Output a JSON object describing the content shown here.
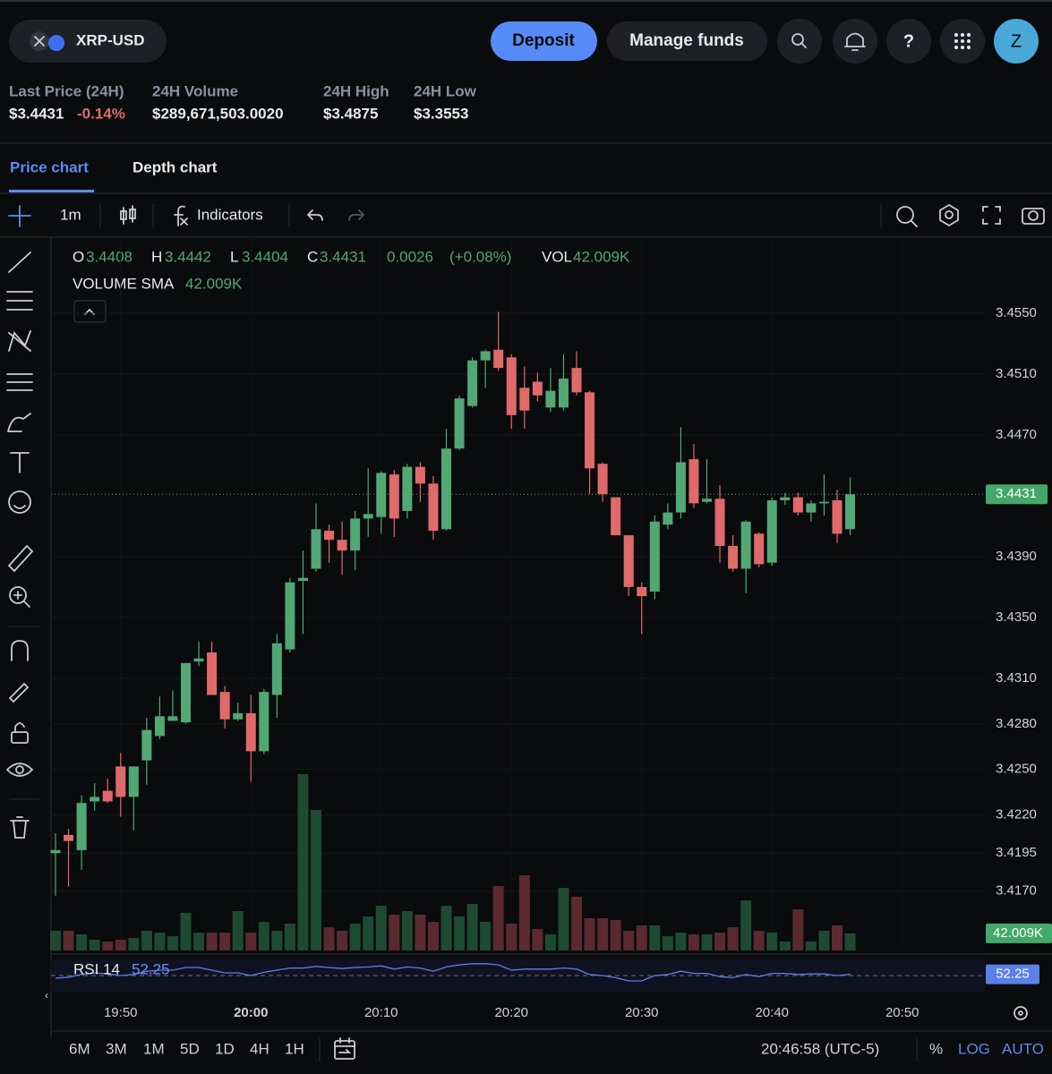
{
  "header": {
    "pair": "XRP-USD",
    "deposit": "Deposit",
    "manage_funds": "Manage funds",
    "help": "?",
    "avatar": "Z"
  },
  "stats": [
    {
      "label": "Last Price (24H)",
      "value": "$3.4431",
      "change": "-0.14%"
    },
    {
      "label": "24H Volume",
      "value": "$289,671,503.0020"
    },
    {
      "label": "24H High",
      "value": "$3.4875"
    },
    {
      "label": "24H Low",
      "value": "$3.3553"
    }
  ],
  "tabs": [
    "Price chart",
    "Depth chart"
  ],
  "toolbar": {
    "interval": "1m",
    "indicators": "Indicators"
  },
  "legend": {
    "o": "O",
    "h": "H",
    "l": "L",
    "c": "C",
    "change": 0.0026,
    "change_pct": "(+0.08%)",
    "vol": "VOL",
    "volume_sma": "VOLUME SMA",
    "rsi": "RSI 14"
  },
  "chart_data": {
    "type": "candlestick",
    "categories": [
      null,
      null,
      null,
      null,
      null,
      "19:50",
      null,
      null,
      null,
      null,
      null,
      null,
      null,
      null,
      null,
      "20:00",
      null,
      null,
      null,
      null,
      null,
      null,
      null,
      null,
      null,
      "20:10",
      null,
      null,
      null,
      null,
      null,
      null,
      null,
      null,
      null,
      "20:20",
      null,
      null,
      null,
      null,
      null,
      null,
      null,
      null,
      null,
      "20:30",
      null,
      null,
      null,
      null,
      null,
      null,
      null,
      null,
      null,
      "20:40",
      null,
      null,
      null,
      null,
      null,
      null,
      null,
      null,
      null,
      "20:50"
    ],
    "open": [
      3.4195,
      3.4207,
      3.4197,
      3.4229,
      3.4236,
      3.4252,
      3.4232,
      3.4256,
      3.4272,
      3.4282,
      3.4281,
      3.4321,
      3.4327,
      3.4301,
      3.4283,
      3.4287,
      3.4262,
      3.4299,
      3.4329,
      3.4374,
      3.4382,
      3.4407,
      3.4401,
      3.4394,
      3.4415,
      3.4416,
      3.4444,
      3.442,
      3.4449,
      3.4438,
      3.4408,
      3.4461,
      3.4489,
      3.4519,
      3.4526,
      3.4521,
      3.4501,
      3.4505,
      3.4488,
      3.4488,
      3.4514,
      3.4498,
      3.4451,
      3.4429,
      3.4404,
      3.437,
      3.4367,
      3.4411,
      3.4419,
      3.4454,
      3.4426,
      3.4428,
      3.4397,
      3.4382,
      3.4405,
      3.4386,
      3.4427,
      3.4429,
      3.4419,
      3.4425,
      3.4427,
      3.4408,
      null,
      null,
      null,
      null
    ],
    "high": [
      3.4208,
      3.4211,
      3.4233,
      3.4241,
      3.4244,
      3.4261,
      3.4252,
      3.4284,
      3.4298,
      3.4302,
      3.432,
      3.4334,
      3.4334,
      3.4305,
      3.4294,
      3.4299,
      3.4303,
      3.4339,
      3.4376,
      3.4394,
      3.4425,
      3.4411,
      3.4413,
      3.442,
      3.4448,
      3.4446,
      3.4447,
      3.4451,
      3.4452,
      3.4443,
      3.4474,
      3.4496,
      3.4521,
      3.4526,
      3.4551,
      3.4523,
      3.4515,
      3.4511,
      3.4514,
      3.4523,
      3.4525,
      3.4499,
      3.4452,
      3.4429,
      3.4404,
      3.4373,
      3.4417,
      3.4425,
      3.4475,
      3.4464,
      3.4454,
      3.4437,
      3.4404,
      3.4414,
      3.4406,
      3.4429,
      3.4432,
      3.4432,
      3.4427,
      3.4444,
      3.4434,
      3.4442,
      null,
      null,
      null,
      null
    ],
    "low": [
      3.4167,
      3.4173,
      3.4184,
      3.4223,
      3.4228,
      3.4219,
      3.421,
      3.424,
      3.427,
      3.4282,
      3.428,
      3.4318,
      3.4299,
      3.4277,
      3.4282,
      3.4242,
      3.426,
      3.4284,
      3.4327,
      3.4339,
      3.438,
      3.4386,
      3.4378,
      3.4381,
      3.4403,
      3.4405,
      3.4403,
      3.4415,
      3.4426,
      3.4401,
      3.4407,
      3.446,
      3.4488,
      3.4501,
      3.4512,
      3.4474,
      3.4474,
      3.4492,
      3.4485,
      3.4486,
      3.4496,
      3.4431,
      3.4426,
      3.4404,
      3.4364,
      3.4339,
      3.4362,
      3.4408,
      3.4415,
      3.4422,
      3.4425,
      3.4386,
      3.438,
      3.4366,
      3.4383,
      3.4384,
      3.4424,
      3.4417,
      3.4413,
      3.4417,
      3.4399,
      3.4404,
      null,
      null,
      null,
      null
    ],
    "close": [
      3.4197,
      3.4203,
      3.4228,
      3.4232,
      3.4229,
      3.4232,
      3.4252,
      3.4276,
      3.4285,
      3.4285,
      3.432,
      3.4323,
      3.4299,
      3.4283,
      3.4287,
      3.4262,
      3.4301,
      3.4333,
      3.4373,
      3.4376,
      3.4408,
      3.4401,
      3.4394,
      3.4415,
      3.4418,
      3.4445,
      3.4415,
      3.4449,
      3.4438,
      3.4407,
      3.4461,
      3.4494,
      3.4519,
      3.4525,
      3.4514,
      3.4483,
      3.4486,
      3.4496,
      3.4499,
      3.4507,
      3.4498,
      3.4448,
      3.4431,
      3.4404,
      3.437,
      3.4364,
      3.4413,
      3.4419,
      3.4452,
      3.4425,
      3.4428,
      3.4397,
      3.4382,
      3.4413,
      3.4385,
      3.4427,
      3.4429,
      3.4419,
      3.4425,
      3.4426,
      3.4405,
      3.4431,
      null,
      null,
      null,
      null
    ],
    "volume": [
      48400,
      48400,
      39600,
      26400,
      22000,
      26400,
      30800,
      48400,
      44000,
      35200,
      92400,
      44000,
      44000,
      44000,
      96800,
      44000,
      70400,
      48400,
      66000,
      433400,
      345400,
      57200,
      48400,
      66000,
      83600,
      110000,
      88000,
      96800,
      88000,
      70400,
      110000,
      83600,
      114400,
      70400,
      158400,
      66000,
      184800,
      52800,
      39600,
      154000,
      132000,
      79200,
      79200,
      74800,
      48400,
      61600,
      61600,
      35200,
      44000,
      39600,
      39600,
      44000,
      57200,
      123200,
      48400,
      44000,
      22000,
      101200,
      22000,
      48400,
      61600,
      42009,
      null,
      null,
      null,
      null
    ],
    "rsi": [
      45,
      47,
      52,
      55,
      53,
      50,
      52,
      58,
      60,
      60,
      65,
      65,
      60,
      55,
      55,
      50,
      56,
      60,
      64,
      64,
      67,
      65,
      63,
      65,
      66,
      68,
      62,
      66,
      64,
      58,
      66,
      70,
      72,
      72,
      70,
      60,
      62,
      62,
      62,
      64,
      62,
      52,
      50,
      46,
      40,
      40,
      50,
      52,
      58,
      54,
      54,
      48,
      46,
      52,
      48,
      54,
      54,
      52,
      53,
      53,
      50,
      52.25,
      null,
      null,
      null,
      null
    ],
    "ylim": [
      3.4131,
      3.46
    ],
    "yticks": [
      {
        "value": 3.455,
        "label": "3.4550"
      },
      {
        "value": 3.451,
        "label": "3.4510"
      },
      {
        "value": 3.447,
        "label": "3.4470"
      },
      {
        "value": 3.439,
        "label": "3.4390"
      },
      {
        "value": 3.435,
        "label": "3.4350"
      },
      {
        "value": 3.431,
        "label": "3.4310"
      },
      {
        "value": 3.428,
        "label": "3.4280"
      },
      {
        "value": 3.425,
        "label": "3.4250"
      },
      {
        "value": 3.422,
        "label": "3.4220"
      },
      {
        "value": 3.4195,
        "label": "3.4195"
      },
      {
        "value": 3.417,
        "label": "3.4170"
      }
    ],
    "last_price": 3.4431,
    "volume_sma": {
      "value": 42009,
      "label": "42.009K"
    },
    "up_color": "#52a873",
    "down_color": "#e06a6a",
    "grid": true,
    "log": false
  },
  "footer": {
    "ranges": [
      "6M",
      "3M",
      "1M",
      "5D",
      "1D",
      "4H",
      "1H"
    ],
    "clock": "20:46:58 (UTC-5)",
    "percent": "%",
    "log": "LOG",
    "auto": "AUTO"
  }
}
